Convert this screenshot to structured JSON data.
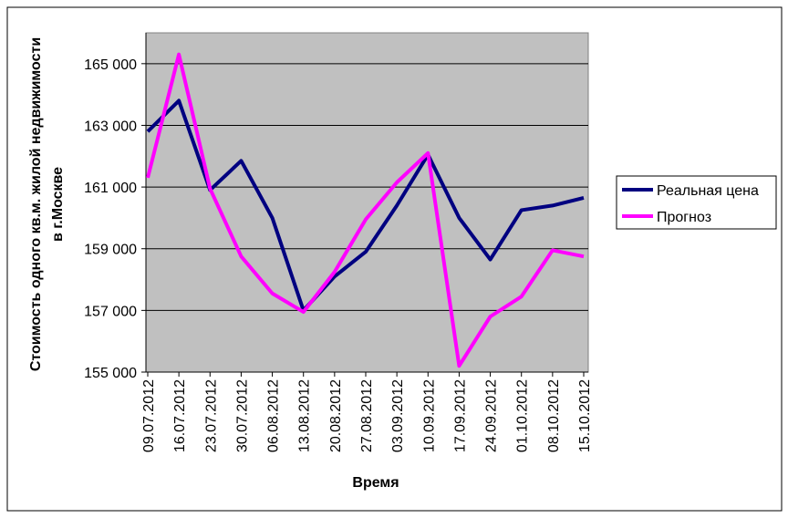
{
  "chart_data": {
    "type": "line",
    "y_label": [
      "Стоимость одного кв.м. жилой недвижимости",
      "в г.Москве"
    ],
    "x_label": "Время",
    "categories": [
      "09.07.2012",
      "16.07.2012",
      "23.07.2012",
      "30.07.2012",
      "06.08.2012",
      "13.08.2012",
      "20.08.2012",
      "27.08.2012",
      "03.09.2012",
      "10.09.2012",
      "17.09.2012",
      "24.09.2012",
      "01.10.2012",
      "08.10.2012",
      "15.10.2012"
    ],
    "series": [
      {
        "name": "Реальная цена",
        "color": "#000080",
        "values": [
          162800,
          163800,
          160900,
          161850,
          160000,
          157000,
          158100,
          158900,
          160400,
          162050,
          160000,
          158650,
          160250,
          160400,
          160650
        ]
      },
      {
        "name": "Прогноз",
        "color": "#ff00ff",
        "values": [
          161300,
          165300,
          160950,
          158750,
          157550,
          156950,
          158250,
          159950,
          161150,
          162100,
          155200,
          156800,
          157450,
          158950,
          158750
        ]
      }
    ],
    "ylim": [
      155000,
      166000
    ],
    "yticks": [
      {
        "value": 155000,
        "label": "155 000"
      },
      {
        "value": 157000,
        "label": "157 000"
      },
      {
        "value": 159000,
        "label": "159 000"
      },
      {
        "value": 161000,
        "label": "161 000"
      },
      {
        "value": 163000,
        "label": "163 000"
      },
      {
        "value": 165000,
        "label": "165 000"
      }
    ],
    "grid": true,
    "legend": "right"
  }
}
